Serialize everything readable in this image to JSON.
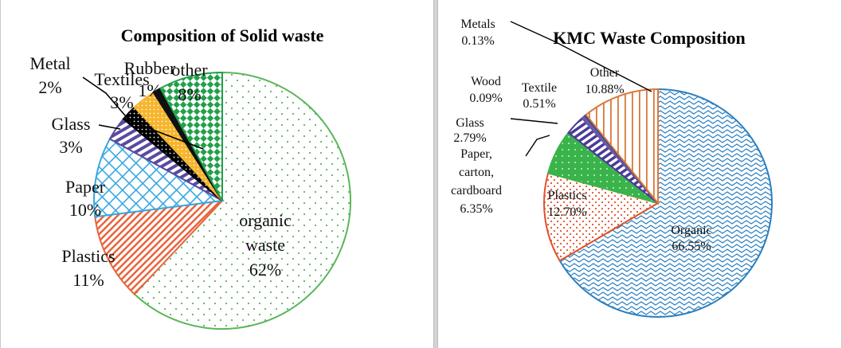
{
  "chart_data": [
    {
      "type": "pie",
      "title": "Composition of Solid waste",
      "slices": [
        {
          "label": "organic waste",
          "value": 62,
          "pct_label": "62%",
          "color": "#5ab65a",
          "pattern": "dots-green"
        },
        {
          "label": "Plastics",
          "value": 11,
          "pct_label": "11%",
          "color": "#e8643c",
          "pattern": "diag-red"
        },
        {
          "label": "Paper",
          "value": 10,
          "pct_label": "10%",
          "color": "#36a8e0",
          "pattern": "cross-blue"
        },
        {
          "label": "Glass",
          "value": 3,
          "pct_label": "3%",
          "color": "#5a4aa0",
          "pattern": "stripe-purple"
        },
        {
          "label": "Metal",
          "value": 2,
          "pct_label": "2%",
          "color": "#000000",
          "pattern": "dots-black"
        },
        {
          "label": "Textiles",
          "value": 3,
          "pct_label": "3%",
          "color": "#f6b52c",
          "pattern": "dots-orange"
        },
        {
          "label": "Rubber",
          "value": 1,
          "pct_label": "1%",
          "color": "#111111",
          "pattern": "solid-black"
        },
        {
          "label": "other",
          "value": 8,
          "pct_label": "8%",
          "color": "#22a04a",
          "pattern": "check-green"
        }
      ]
    },
    {
      "type": "pie",
      "title": "KMC Waste Composition",
      "slices": [
        {
          "label": "Organic",
          "value": 66.55,
          "pct_label": "66.55%",
          "color": "#2a7fc0",
          "pattern": "wave-blue"
        },
        {
          "label": "Plastics",
          "value": 12.7,
          "pct_label": "12.70%",
          "color": "#e0522c",
          "pattern": "dots-red"
        },
        {
          "label": "Paper, carton, cardboard",
          "value": 6.35,
          "pct_label": "6.35%",
          "color": "#3ab44a",
          "pattern": "dots-green2"
        },
        {
          "label": "Glass",
          "value": 2.79,
          "pct_label": "2.79%",
          "color": "#4a3a98",
          "pattern": "stripe-purple2"
        },
        {
          "label": "Textile",
          "value": 0.51,
          "pct_label": "0.51%",
          "color": "#6a5aa8",
          "pattern": "solid-purple"
        },
        {
          "label": "Wood",
          "value": 0.09,
          "pct_label": "0.09%",
          "color": "#4a5a9a",
          "pattern": "solid-slate"
        },
        {
          "label": "Metals",
          "value": 0.13,
          "pct_label": "0.13%",
          "color": "#1f3f86",
          "pattern": "solid-navy"
        },
        {
          "label": "Other",
          "value": 10.88,
          "pct_label": "10.88%",
          "color": "#d9783a",
          "pattern": "vert-orange"
        }
      ]
    }
  ]
}
